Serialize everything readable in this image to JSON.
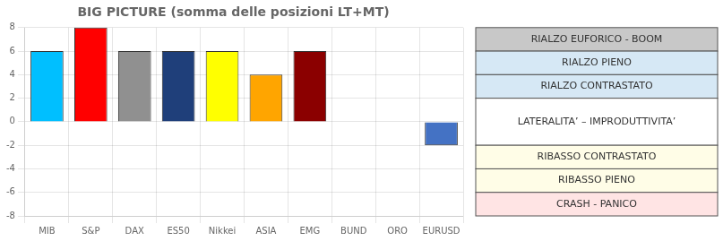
{
  "chart_data": {
    "type": "bar",
    "title": "BIG PICTURE (somma delle posizioni LT+MT)",
    "categories": [
      "MIB",
      "S&P",
      "DAX",
      "ES50",
      "Nikkei",
      "ASIA",
      "EMG",
      "BUND",
      "ORO",
      "EURUSD"
    ],
    "values": [
      6,
      8,
      6,
      6,
      6,
      4,
      6,
      0,
      0,
      -2
    ],
    "colors": [
      "#00BFFF",
      "#FF0000",
      "#909090",
      "#1F3F7A",
      "#FFFF00",
      "#FFA500",
      "#8B0000",
      "#FFFFFF",
      "#FFFFFF",
      "#4472C4"
    ],
    "ylim": [
      -8,
      8
    ],
    "yticks": [
      -8,
      -6,
      -4,
      -2,
      0,
      2,
      4,
      6,
      8
    ],
    "grid": true,
    "annotations": [
      {
        "label": "RIALZO EUFORICO - BOOM",
        "ymin": 6,
        "ymax": 8,
        "color": "#C8C8C8"
      },
      {
        "label": "RIALZO PIENO",
        "ymin": 4,
        "ymax": 6,
        "color": "#D6E8F5"
      },
      {
        "label": "RIALZO CONTRASTATO",
        "ymin": 2,
        "ymax": 4,
        "color": "#D6E8F5"
      },
      {
        "label": "LATERALITA’ – IMPRODUTTIVITA’",
        "ymin": -2,
        "ymax": 2,
        "color": "#FFFFFF"
      },
      {
        "label": "RIBASSO CONTRASTATO",
        "ymin": -4,
        "ymax": -2,
        "color": "#FFFDE7"
      },
      {
        "label": "RIBASSO PIENO",
        "ymin": -6,
        "ymax": -4,
        "color": "#FFFDE7"
      },
      {
        "label": "CRASH - PANICO",
        "ymin": -8,
        "ymax": -6,
        "color": "#FFE4E4"
      }
    ]
  }
}
